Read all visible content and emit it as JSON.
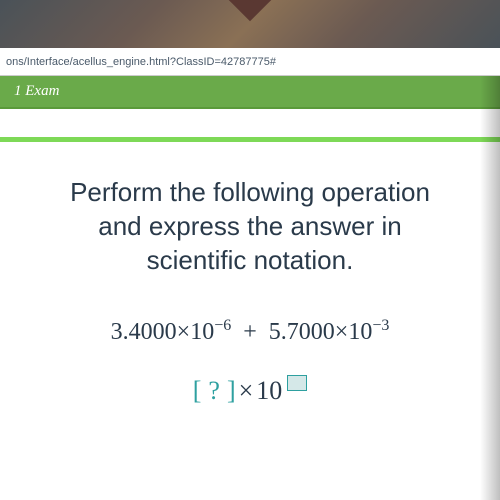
{
  "browser": {
    "url_fragment": "ons/Interface/acellus_engine.html?ClassID=42787775#"
  },
  "header": {
    "exam_label": "1 Exam"
  },
  "question": {
    "instruction_line1": "Perform the following operation",
    "instruction_line2": "and express the answer in",
    "instruction_line3": "scientific notation.",
    "term1_mantissa": "3.4000",
    "term1_base": "10",
    "term1_exponent": "−6",
    "operator": "+",
    "term2_mantissa": "5.7000",
    "term2_base": "10",
    "term2_exponent": "−3",
    "answer_placeholder": "?",
    "answer_base": "10",
    "times": "×"
  },
  "colors": {
    "header_bg": "#6aaa4a",
    "stripe_bg": "#7ed957",
    "bracket_color": "#2ea0a0",
    "text_color": "#2a3a4a"
  }
}
